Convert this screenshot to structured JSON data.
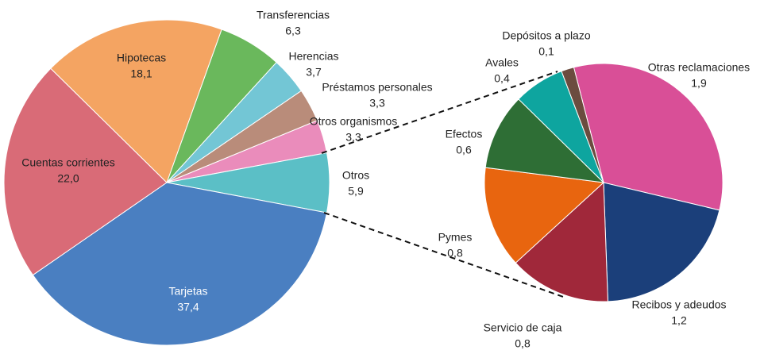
{
  "chart_data": {
    "type": "pie-of-pie",
    "pie": {
      "categories": [
        "Transferencias",
        "Herencias",
        "Préstamos personales",
        "Otros organismos",
        "Otros",
        "Tarjetas",
        "Cuentas corrientes",
        "Hipotecas"
      ],
      "values": [
        6.3,
        3.7,
        3.3,
        3.3,
        5.9,
        37.4,
        22.0,
        18.1
      ],
      "value_labels": [
        "6,3",
        "3,7",
        "3,3",
        "3,3",
        "5,9",
        "37,4",
        "22,0",
        "18,1"
      ],
      "colors": [
        "#6ab85c",
        "#73c6d5",
        "#b98c7a",
        "#ea8cbb",
        "#5bbfc6",
        "#4a7fc1",
        "#d96b77",
        "#f4a462"
      ]
    },
    "subpie": {
      "categories": [
        "Otras reclamaciones",
        "Recibos y adeudos",
        "Servicio de caja",
        "Pymes",
        "Efectos",
        "Avales",
        "Depósitos a plazo"
      ],
      "values": [
        1.9,
        1.2,
        0.8,
        0.8,
        0.6,
        0.4,
        0.1
      ],
      "value_labels": [
        "1,9",
        "1,2",
        "0,8",
        "0,8",
        "0,6",
        "0,4",
        "0,1"
      ],
      "colors": [
        "#d94f97",
        "#1b3f7a",
        "#a0283a",
        "#e8650f",
        "#2e6e35",
        "#0ea59f",
        "#6b4c3f"
      ]
    }
  }
}
